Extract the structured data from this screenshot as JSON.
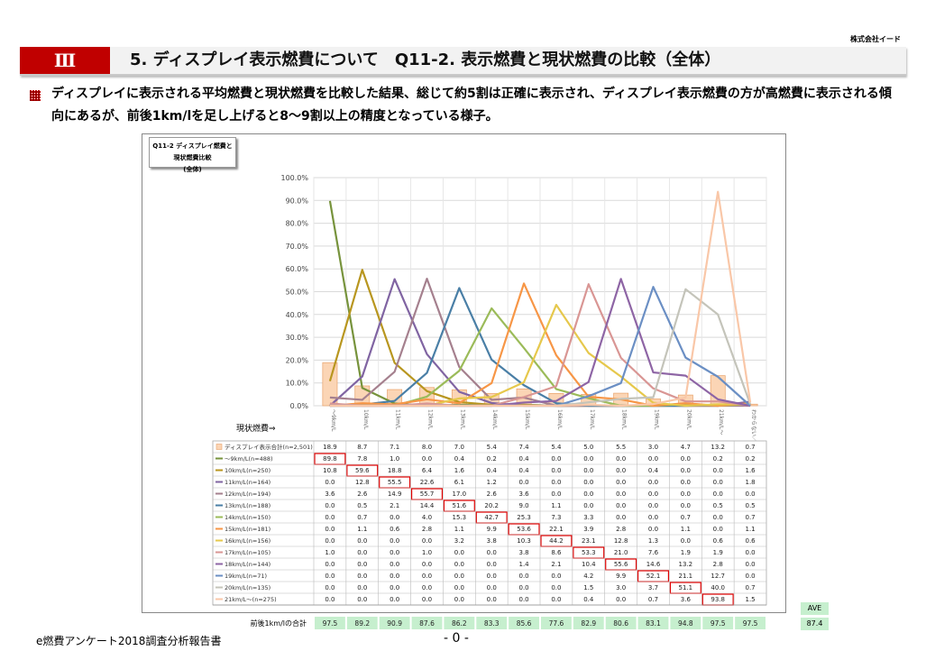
{
  "company": "株式会社イード",
  "section": {
    "roman": "Ⅲ",
    "title": "5. ディスプレイ表示燃費について　Q11-2. 表示燃費と現状燃費の比較（全体）"
  },
  "lead": "ディスプレイに表示される平均燃費と現状燃費を比較した結果、総じて約5割は正確に表示され、ディスプレイ表示燃費の方が高燃費に表示される傾向にあるが、前後1km/lを足し上げると8～9割以上の精度となっている様子。",
  "chart_title_line1": "Q11-2 ディスプレイ燃費と現状燃費比較",
  "chart_title_line2": "(全体)",
  "x_axis_caption": "現状燃費⇒",
  "footer": {
    "left": "e燃費アンケート2018調査分析報告書",
    "page": "- 0 -"
  },
  "summary": {
    "label": "前後1km/lの合計",
    "values": [
      "97.5",
      "89.2",
      "90.9",
      "87.6",
      "86.2",
      "83.3",
      "85.6",
      "77.6",
      "82.9",
      "80.6",
      "83.1",
      "94.8",
      "97.5",
      "97.5"
    ],
    "ave_label": "AVE",
    "ave_value": "87.4"
  },
  "chart_data": {
    "type": "line",
    "title": "Q11-2 ディスプレイ燃費と現状燃費比較 (全体)",
    "categories": [
      "～9km/L",
      "10km/L",
      "11km/L",
      "12km/L",
      "13km/L",
      "14km/L",
      "15km/L",
      "16km/L",
      "17km/L",
      "18km/L",
      "19km/L",
      "20km/L",
      "21km/L～",
      "わからない／覚えていない"
    ],
    "ylim": [
      0,
      100
    ],
    "yticks": [
      "0.0%",
      "10.0%",
      "20.0%",
      "30.0%",
      "40.0%",
      "50.0%",
      "60.0%",
      "70.0%",
      "80.0%",
      "90.0%",
      "100.0%"
    ],
    "bar_series": {
      "name": "ディスプレイ表示合計(n=2,501)",
      "color": "#fbd5b5",
      "values": [
        18.9,
        8.7,
        7.1,
        8.0,
        7.0,
        5.4,
        7.4,
        5.4,
        5.0,
        5.5,
        3.0,
        4.7,
        13.2,
        0.7
      ]
    },
    "series": [
      {
        "name": "～9km/L(n=488)",
        "color": "#77933c",
        "values": [
          89.8,
          7.8,
          1.0,
          0.0,
          0.4,
          0.2,
          0.4,
          0.0,
          0.0,
          0.0,
          0.0,
          0.0,
          0.2,
          0.2
        ],
        "diag": 0
      },
      {
        "name": "10km/L(n=250)",
        "color": "#b8961f",
        "values": [
          10.8,
          59.6,
          18.8,
          6.4,
          1.6,
          0.4,
          0.4,
          0.0,
          0.0,
          0.0,
          0.4,
          0.0,
          0.0,
          1.6
        ],
        "diag": 1
      },
      {
        "name": "11km/L(n=164)",
        "color": "#8064a2",
        "values": [
          0.0,
          12.8,
          55.5,
          22.6,
          6.1,
          1.2,
          0.0,
          0.0,
          0.0,
          0.0,
          0.0,
          0.0,
          0.0,
          1.8
        ],
        "diag": 2
      },
      {
        "name": "12km/L(n=194)",
        "color": "#a5808e",
        "values": [
          3.6,
          2.6,
          14.9,
          55.7,
          17.0,
          2.6,
          3.6,
          0.0,
          0.0,
          0.0,
          0.0,
          0.0,
          0.0,
          0.0
        ],
        "diag": 3
      },
      {
        "name": "13km/L(n=188)",
        "color": "#4a7fa6",
        "values": [
          0.0,
          0.5,
          2.1,
          14.4,
          51.6,
          20.2,
          9.0,
          1.1,
          0.0,
          0.0,
          0.0,
          0.0,
          0.5,
          0.5
        ],
        "diag": 4
      },
      {
        "name": "14km/L(n=150)",
        "color": "#9bbb59",
        "values": [
          0.0,
          0.7,
          0.0,
          4.0,
          15.3,
          42.7,
          25.3,
          7.3,
          3.3,
          0.0,
          0.0,
          0.7,
          0.0,
          0.7
        ],
        "diag": 5
      },
      {
        "name": "15km/L(n=181)",
        "color": "#f79646",
        "values": [
          0.0,
          1.1,
          0.6,
          2.8,
          1.1,
          9.9,
          53.6,
          22.1,
          3.9,
          2.8,
          0.0,
          1.1,
          0.0,
          1.1
        ],
        "diag": 6
      },
      {
        "name": "16km/L(n=156)",
        "color": "#e6c84c",
        "values": [
          0.0,
          0.0,
          0.0,
          0.0,
          3.2,
          3.8,
          10.3,
          44.2,
          23.1,
          12.8,
          1.3,
          0.0,
          0.6,
          0.6
        ],
        "diag": 7
      },
      {
        "name": "17km/L(n=105)",
        "color": "#d99694",
        "values": [
          1.0,
          0.0,
          0.0,
          1.0,
          0.0,
          0.0,
          3.8,
          8.6,
          53.3,
          21.0,
          7.6,
          1.9,
          1.9,
          0.0
        ],
        "diag": 8
      },
      {
        "name": "18km/L(n=144)",
        "color": "#8e65a5",
        "values": [
          0.0,
          0.0,
          0.0,
          0.0,
          0.0,
          0.0,
          1.4,
          2.1,
          10.4,
          55.6,
          14.6,
          13.2,
          2.8,
          0.0
        ],
        "diag": 9
      },
      {
        "name": "19km/L(n=71)",
        "color": "#6b8fc4",
        "values": [
          0.0,
          0.0,
          0.0,
          0.0,
          0.0,
          0.0,
          0.0,
          0.0,
          4.2,
          9.9,
          52.1,
          21.1,
          12.7,
          0.0
        ],
        "diag": 10
      },
      {
        "name": "20km/L(n=135)",
        "color": "#c4c4ba",
        "values": [
          0.0,
          0.0,
          0.0,
          0.0,
          0.0,
          0.0,
          0.0,
          0.0,
          1.5,
          3.0,
          3.7,
          51.1,
          40.0,
          0.7
        ],
        "diag": 11
      },
      {
        "name": "21km/L～(n=275)",
        "color": "#f9c7a8",
        "values": [
          0.0,
          0.0,
          0.0,
          0.0,
          0.0,
          0.0,
          0.0,
          0.0,
          0.4,
          0.0,
          0.7,
          3.6,
          93.8,
          1.5
        ],
        "diag": 12
      }
    ]
  }
}
